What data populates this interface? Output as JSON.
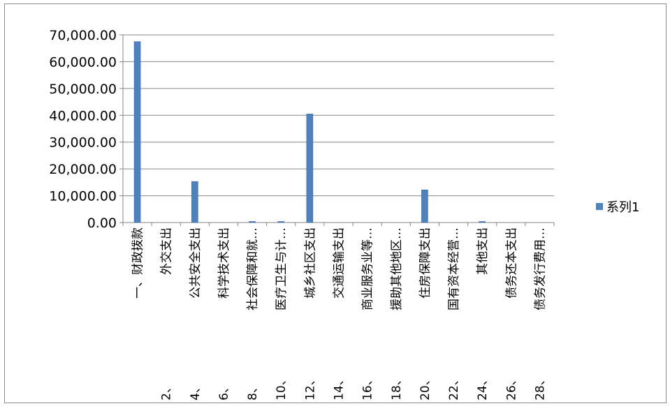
{
  "chart_data": {
    "type": "bar",
    "title": "",
    "xlabel": "",
    "ylabel": "",
    "ylim": [
      0,
      70000
    ],
    "y_ticks": [
      "0.00",
      "10,000.00",
      "20,000.00",
      "30,000.00",
      "40,000.00",
      "50,000.00",
      "60,000.00",
      "70,000.00"
    ],
    "grid": true,
    "legend_position": "right",
    "bar_color": "#4f81bd",
    "categories": [
      "一、财政拨款",
      "2、外交支出",
      "4、公共安全支出",
      "6、科学技术支出",
      "8、社会保障和就…",
      "10、医疗卫生与计…",
      "12、城乡社区支出",
      "14、交通运输支出",
      "16、商业服务业等…",
      "18、援助其他地区…",
      "20、住房保障支出",
      "22、国有资本经营…",
      "24、其他支出",
      "26、债务还本支出",
      "28、债务发行费用…"
    ],
    "category_prefix": [
      "",
      "2、",
      "4、",
      "6、",
      "8、",
      "10、",
      "12、",
      "14、",
      "16、",
      "18、",
      "20、",
      "22、",
      "24、",
      "26、",
      "28、"
    ],
    "category_label": [
      "一、财政拨款",
      "外交支出",
      "公共安全支出",
      "科学技术支出",
      "社会保障和就…",
      "医疗卫生与计…",
      "城乡社区支出",
      "交通运输支出",
      "商业服务业等…",
      "援助其他地区…",
      "住房保障支出",
      "国有资本经营…",
      "其他支出",
      "债务还本支出",
      "债务发行费用…"
    ],
    "series": [
      {
        "name": "系列1",
        "values": [
          67500,
          0,
          15300,
          0,
          400,
          300,
          40500,
          0,
          0,
          0,
          12200,
          0,
          300,
          0,
          0
        ]
      }
    ]
  }
}
